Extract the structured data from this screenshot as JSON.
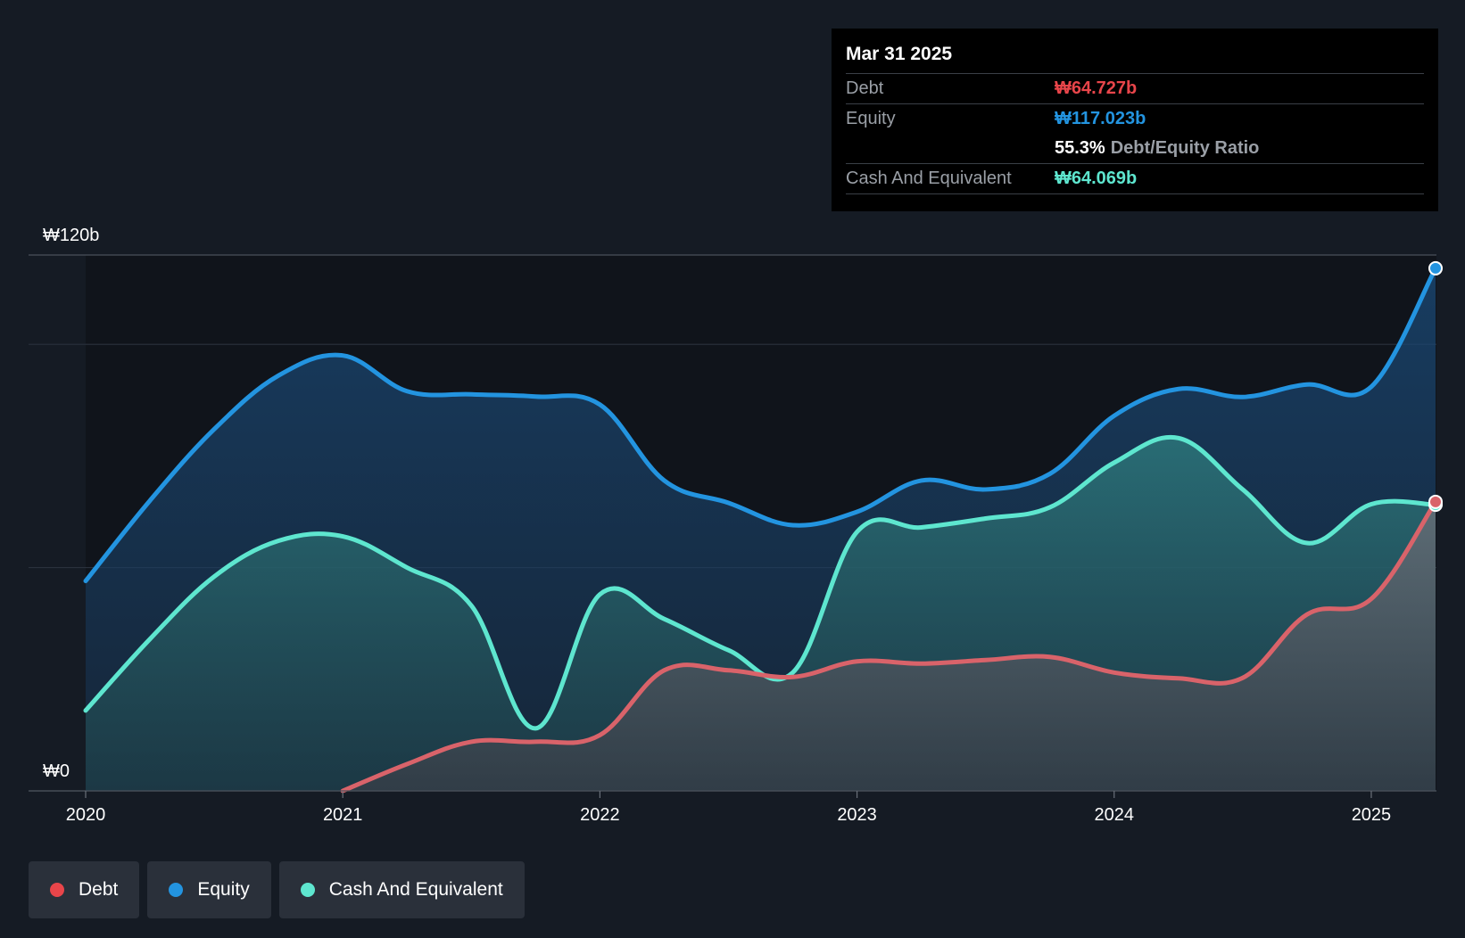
{
  "tooltip": {
    "date": "Mar 31 2025",
    "debt_label": "Debt",
    "debt_value": "₩64.727b",
    "equity_label": "Equity",
    "equity_value": "₩117.023b",
    "ratio_pct": "55.3%",
    "ratio_label": "Debt/Equity Ratio",
    "cash_label": "Cash And Equivalent",
    "cash_value": "₩64.069b"
  },
  "legend": {
    "debt": "Debt",
    "equity": "Equity",
    "cash": "Cash And Equivalent"
  },
  "colors": {
    "background": "#151b24",
    "debt": "#e8454a",
    "debt_line": "#d9636a",
    "equity": "#2394e0",
    "cash": "#5ee6cf"
  },
  "chart_data": {
    "type": "area",
    "unit": "₩b",
    "y_tick_labels": [
      "₩0",
      "₩120b"
    ],
    "ylim": [
      0,
      120
    ],
    "y_gridlines": [
      0,
      50,
      100,
      120
    ],
    "x_tick_labels": [
      "2020",
      "2021",
      "2022",
      "2023",
      "2024",
      "2025"
    ],
    "xlim": [
      2020.0,
      2025.25
    ],
    "grid": true,
    "legend_position": "bottom-left",
    "series": [
      {
        "name": "Debt",
        "x": [
          2021.0,
          2021.25,
          2021.5,
          2021.75,
          2022.0,
          2022.25,
          2022.5,
          2022.75,
          2023.0,
          2023.25,
          2023.5,
          2023.75,
          2024.0,
          2024.25,
          2024.5,
          2024.75,
          2025.0,
          2025.25
        ],
        "values": [
          0,
          6,
          11,
          11,
          12.5,
          27,
          27,
          25.5,
          29,
          28.5,
          29.3,
          30,
          26.5,
          25.2,
          25.3,
          39.5,
          43,
          64.727
        ]
      },
      {
        "name": "Equity",
        "x": [
          2020.0,
          2020.25,
          2020.5,
          2020.75,
          2021.0,
          2021.25,
          2021.5,
          2021.75,
          2022.0,
          2022.25,
          2022.5,
          2022.75,
          2023.0,
          2023.25,
          2023.5,
          2023.75,
          2024.0,
          2024.25,
          2024.5,
          2024.75,
          2025.0,
          2025.25
        ],
        "values": [
          47,
          65,
          81,
          93,
          97.5,
          89.5,
          88.8,
          88.3,
          86.5,
          69.5,
          64.5,
          59.5,
          62.5,
          69.5,
          67.5,
          71,
          84,
          90,
          88.2,
          91,
          90.5,
          117.023
        ]
      },
      {
        "name": "Cash And Equivalent",
        "x": [
          2020.0,
          2020.25,
          2020.5,
          2020.75,
          2021.0,
          2021.25,
          2021.5,
          2021.75,
          2022.0,
          2022.25,
          2022.5,
          2022.75,
          2023.0,
          2023.25,
          2023.5,
          2023.75,
          2024.0,
          2024.25,
          2024.5,
          2024.75,
          2025.0,
          2025.25
        ],
        "values": [
          18,
          34,
          48,
          56,
          57,
          50,
          41.5,
          14,
          44,
          38.5,
          31.5,
          26.5,
          58,
          59,
          61,
          63.5,
          73.5,
          79,
          67.5,
          55.5,
          64.2,
          64.069
        ]
      }
    ]
  }
}
